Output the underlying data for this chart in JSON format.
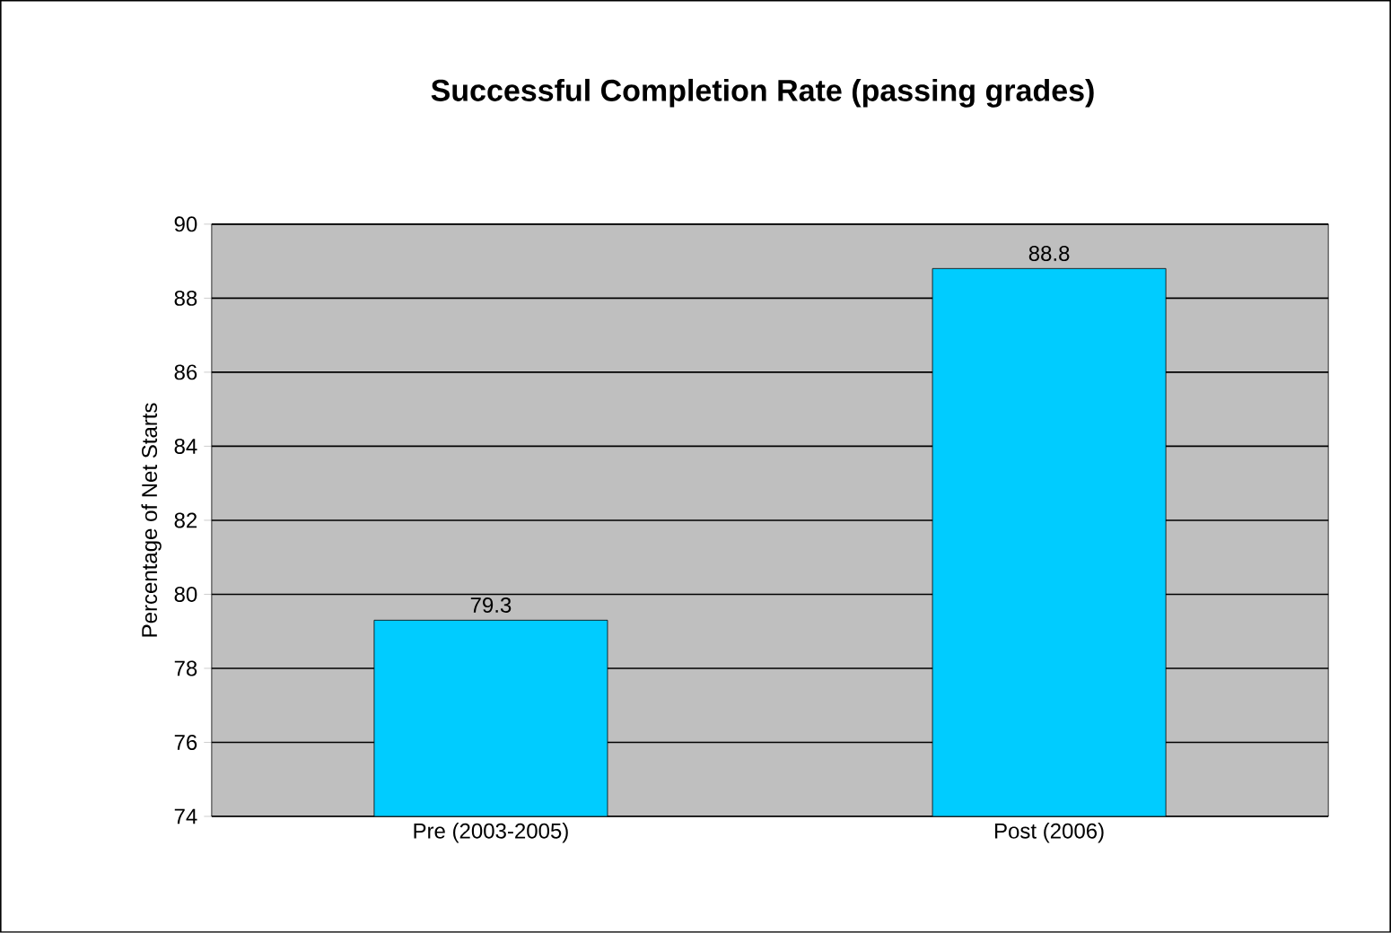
{
  "chart_data": {
    "type": "bar",
    "title": "Successful Completion Rate (passing grades)",
    "ylabel": "Percentage of Net Starts",
    "categories": [
      "Pre (2003-2005)",
      "Post (2006)"
    ],
    "values": [
      79.3,
      88.8
    ],
    "color": "#00ccff",
    "ylim": [
      74,
      90
    ],
    "yticks": [
      74,
      76,
      78,
      80,
      82,
      84,
      86,
      88,
      90
    ],
    "grid": "y",
    "data_labels": true
  }
}
